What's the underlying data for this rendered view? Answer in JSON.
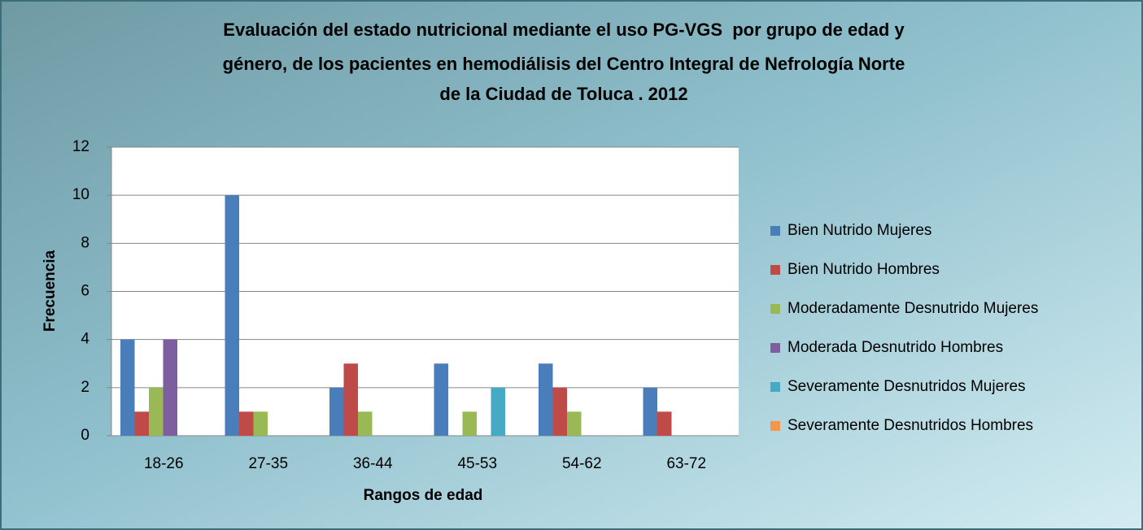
{
  "chart_data": {
    "type": "bar",
    "title": [
      "Evaluación del estado nutricional mediante el uso PG-VGS  por grupo de edad y",
      "género, de los pacientes en hemodiálisis del Centro Integral de Nefrología Norte",
      "de la Ciudad de Toluca . 2012"
    ],
    "x_label": "Rangos de edad",
    "y_label": "Frecuencia",
    "categories": [
      "18-26",
      "27-35",
      "36-44",
      "45-53",
      "54-62",
      "63-72"
    ],
    "series": [
      {
        "name": "Bien Nutrido Mujeres",
        "color": "#4a7ebb",
        "values": [
          4,
          10,
          2,
          3,
          3,
          2
        ]
      },
      {
        "name": "Bien Nutrido Hombres",
        "color": "#be4b48",
        "values": [
          1,
          1,
          3,
          0,
          2,
          1
        ]
      },
      {
        "name": "Moderadamente Desnutrido Mujeres",
        "color": "#98b954",
        "values": [
          2,
          1,
          1,
          1,
          1,
          0
        ]
      },
      {
        "name": "Moderada Desnutrido Hombres",
        "color": "#7d5fa0",
        "values": [
          4,
          0,
          0,
          0,
          0,
          0
        ]
      },
      {
        "name": "Severamente Desnutridos Mujeres",
        "color": "#46aac5",
        "values": [
          0,
          0,
          0,
          2,
          0,
          0
        ]
      },
      {
        "name": "Severamente Desnutridos Hombres",
        "color": "#f79646",
        "values": [
          0,
          0,
          0,
          0,
          0,
          0
        ]
      }
    ],
    "ylim": [
      0,
      12
    ],
    "yticks": [
      0,
      2,
      4,
      6,
      8,
      10,
      12
    ],
    "grid": true,
    "legend": "right"
  }
}
